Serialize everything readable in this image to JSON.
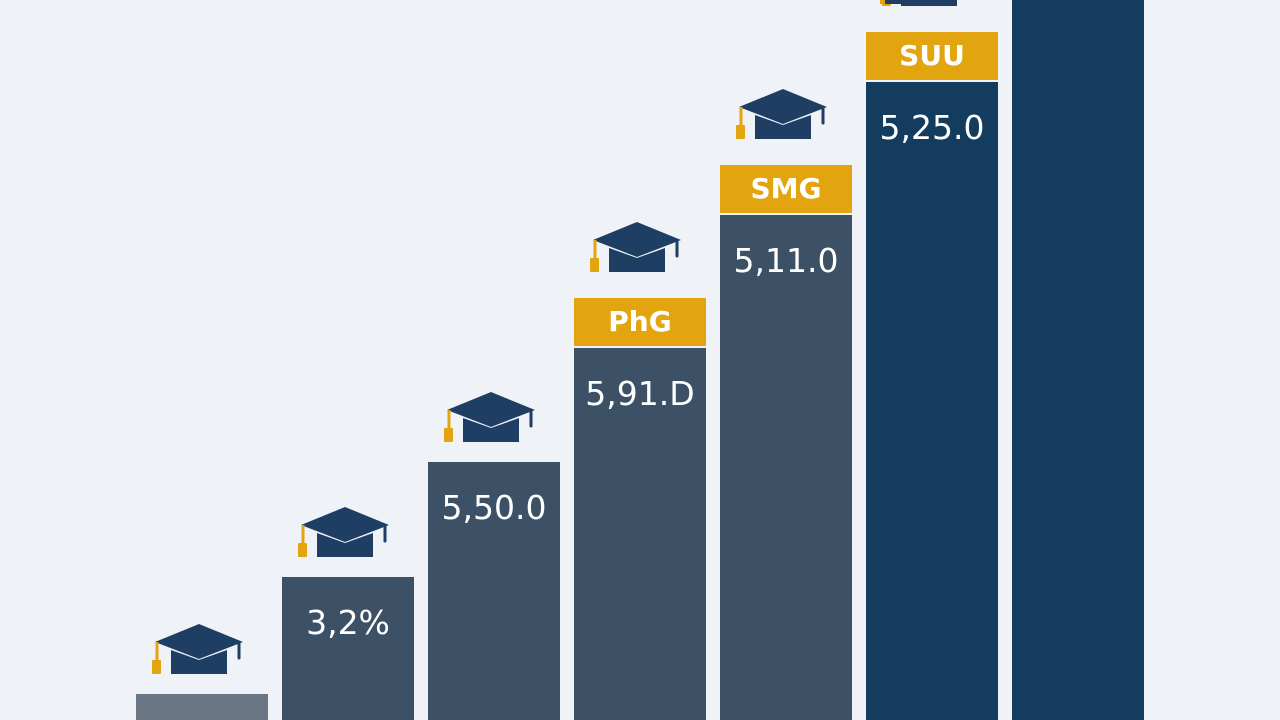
{
  "chart_data": {
    "type": "bar",
    "series": [
      {
        "values": [
          1.0,
          3.2,
          5.5,
          5.91,
          5.11,
          5.25,
          6.9
        ],
        "value_labels": [
          "",
          "3,2%",
          "5,50.0",
          "5,91.D",
          "5,11.0",
          "5,25.0",
          ""
        ],
        "category_tags": [
          "",
          "",
          "",
          "PhG",
          "SMG",
          "SUU",
          ""
        ],
        "cap_icon": [
          true,
          true,
          true,
          true,
          true,
          true,
          false
        ]
      }
    ],
    "colors": {
      "background": "#eff2f7",
      "bar_gray": "#6b7684",
      "bar_slate": "#3c5166",
      "bar_navy": "#133c5e",
      "tag_gold": "#e3a50f",
      "tag_text": "#ffffff",
      "cap_color": "#1e3f63",
      "tassel_color": "#e3a50f"
    },
    "icon": "graduation-cap-icon",
    "grid": false,
    "legend": "none"
  }
}
